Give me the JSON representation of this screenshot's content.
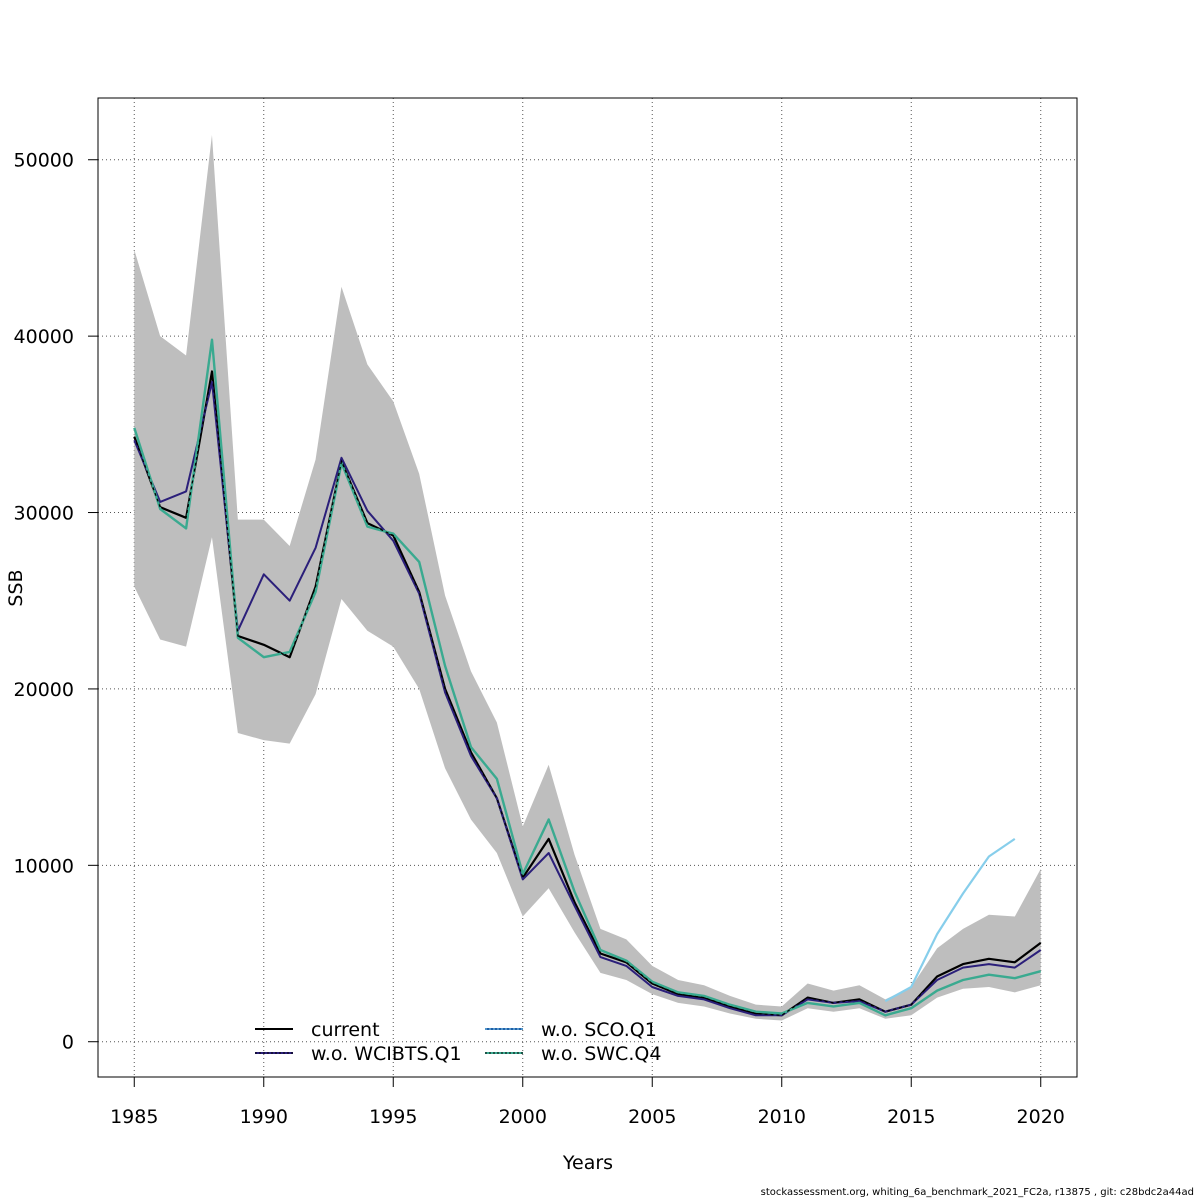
{
  "footer": "stockassessment.org, whiting_6a_benchmark_2021_FC2a, r13875 , git: c28bdc2a44ad",
  "chart_data": {
    "type": "line",
    "xlabel": "Years",
    "ylabel": "SSB",
    "xlim": [
      1983.6,
      2021.4
    ],
    "ylim": [
      -2000,
      53500
    ],
    "xticks": [
      1985,
      1990,
      1995,
      2000,
      2005,
      2010,
      2015,
      2020
    ],
    "yticks": [
      0,
      10000,
      20000,
      30000,
      40000,
      50000
    ],
    "grid": true,
    "legend_position": "bottom-center",
    "colors": {
      "band": "#bebebe",
      "current": "#000000",
      "wo_wcibts": "#2b1f7a",
      "wo_sco": "#87ceeb",
      "wo_swc": "#3aaa90"
    },
    "x": [
      1985,
      1986,
      1987,
      1988,
      1989,
      1990,
      1991,
      1992,
      1993,
      1994,
      1995,
      1996,
      1997,
      1998,
      1999,
      2000,
      2001,
      2002,
      2003,
      2004,
      2005,
      2006,
      2007,
      2008,
      2009,
      2010,
      2011,
      2012,
      2013,
      2014,
      2015,
      2016,
      2017,
      2018,
      2019,
      2020
    ],
    "confidence_band": {
      "upper": [
        44900,
        40000,
        38900,
        51400,
        29600,
        29600,
        28100,
        33000,
        42800,
        38400,
        36300,
        32200,
        25300,
        21000,
        18100,
        12200,
        15700,
        10600,
        6400,
        5800,
        4300,
        3500,
        3200,
        2600,
        2100,
        2000,
        3300,
        2900,
        3200,
        2400,
        3100,
        5300,
        6400,
        7200,
        7100,
        9800
      ],
      "lower": [
        25800,
        22800,
        22400,
        28600,
        17500,
        17100,
        16900,
        19700,
        25100,
        23300,
        22400,
        20000,
        15500,
        12600,
        10700,
        7100,
        8700,
        6200,
        3900,
        3500,
        2700,
        2200,
        2000,
        1600,
        1300,
        1200,
        1900,
        1700,
        1900,
        1300,
        1500,
        2500,
        3000,
        3100,
        2800,
        3200
      ]
    },
    "series": [
      {
        "name": "current",
        "values": [
          34300,
          30300,
          29700,
          38000,
          23000,
          22500,
          21800,
          25800,
          32900,
          29400,
          28700,
          25500,
          20000,
          16400,
          13800,
          9300,
          11500,
          7900,
          5000,
          4500,
          3300,
          2700,
          2500,
          2000,
          1600,
          1500,
          2500,
          2200,
          2400,
          1700,
          2100,
          3700,
          4400,
          4700,
          4500,
          5600
        ]
      },
      {
        "name": "w.o. WCIBTS.Q1",
        "values": [
          34100,
          30600,
          31200,
          37400,
          23300,
          26500,
          25000,
          28000,
          33100,
          30100,
          28400,
          25400,
          19800,
          16200,
          13800,
          9200,
          10700,
          7700,
          4800,
          4300,
          3100,
          2600,
          2400,
          1900,
          1500,
          1500,
          2400,
          2200,
          2300,
          1700,
          2100,
          3500,
          4200,
          4400,
          4200,
          5200
        ]
      },
      {
        "name": "w.o. SCO.Q1",
        "values": [
          null,
          null,
          null,
          null,
          null,
          null,
          null,
          null,
          null,
          null,
          null,
          null,
          null,
          null,
          null,
          null,
          null,
          null,
          null,
          null,
          null,
          null,
          null,
          null,
          null,
          null,
          null,
          null,
          null,
          2300,
          3100,
          6100,
          8400,
          10500,
          11500,
          null
        ]
      },
      {
        "name": "w.o. SWC.Q4",
        "values": [
          34800,
          30200,
          29100,
          39800,
          22900,
          21800,
          22100,
          25500,
          32800,
          29200,
          28800,
          27200,
          21300,
          16700,
          14900,
          9500,
          12600,
          8500,
          5200,
          4600,
          3400,
          2800,
          2600,
          2100,
          1700,
          1600,
          2200,
          2000,
          2200,
          1500,
          1900,
          2900,
          3500,
          3800,
          3600,
          4000
        ]
      }
    ],
    "legend": [
      "current",
      "w.o. WCIBTS.Q1",
      "w.o. SCO.Q1",
      "w.o. SWC.Q4"
    ]
  }
}
